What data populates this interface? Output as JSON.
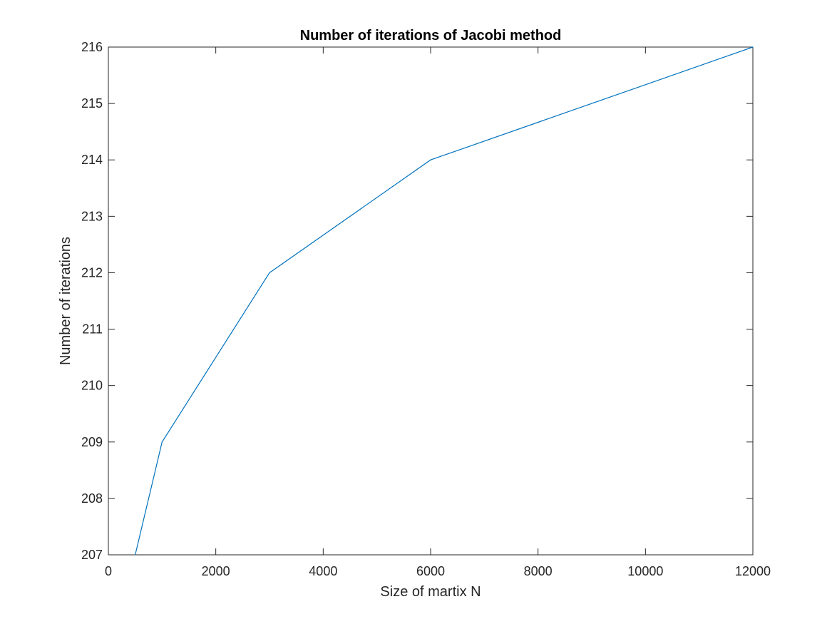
{
  "chart_data": {
    "type": "line",
    "title": "Number of iterations of Jacobi method",
    "xlabel": "Size of martix N",
    "ylabel": "Number of iterations",
    "xlim": [
      0,
      12000
    ],
    "ylim": [
      207,
      216
    ],
    "xticks": [
      0,
      2000,
      4000,
      6000,
      8000,
      10000,
      12000
    ],
    "yticks": [
      207,
      208,
      209,
      210,
      211,
      212,
      213,
      214,
      215,
      216
    ],
    "grid": false,
    "box": true,
    "series": [
      {
        "color": "#0072BD",
        "x": [
          500,
          1000,
          3000,
          6000,
          12000
        ],
        "y": [
          207,
          209,
          212,
          214,
          216
        ]
      }
    ]
  }
}
